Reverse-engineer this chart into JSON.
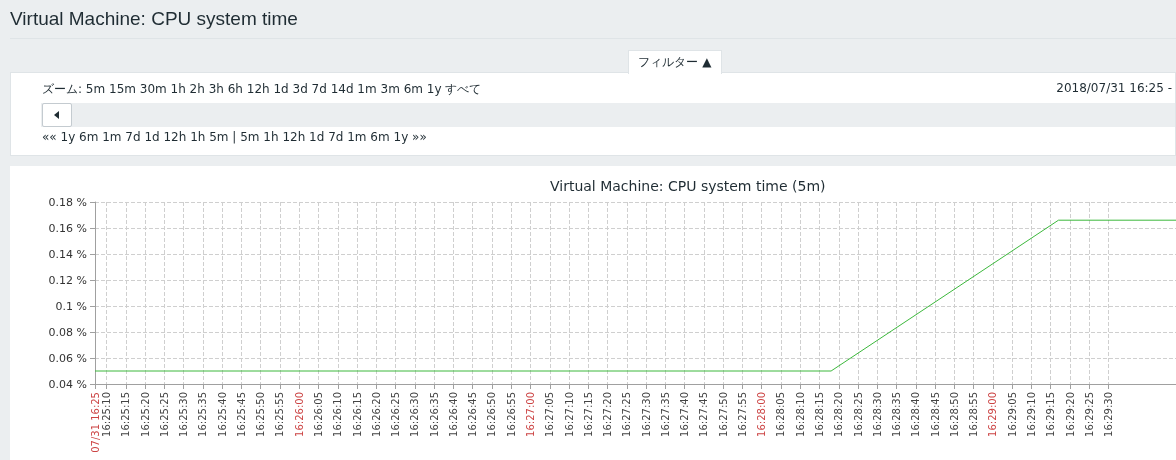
{
  "chart_data": {
    "type": "line",
    "title": "Virtual Machine: CPU system time",
    "subtitle": "Virtual Machine: CPU system time (5m)",
    "annotations": [
      "フィルター ▲",
      "ズーム: 5m 15m 30m 1h 2h 3h 6h 12h 1d 3d 7d 14d 1m 3m 6m 1y すべて",
      "2018/07/31 16:25 -",
      "«« 1y 6m 1m 7d 1d 12h 1h 5m | 5m 1h 12h 1d 7d 1m 6m 1y »»"
    ],
    "series": [
      {
        "color": "#3cb83c",
        "x": [
          16.418611,
          16.471667,
          16.488056,
          16.496528
        ],
        "values": [
          0.05,
          0.05,
          0.166,
          0.166
        ]
      }
    ],
    "xlim": [
      16.418611,
      16.496528
    ],
    "xticks": [
      {
        "value": 16.418611,
        "label": "07/31 16:25"
      },
      {
        "value": 16.419444,
        "label": "16:25:10"
      },
      {
        "value": 16.420833,
        "label": "16:25:15"
      },
      {
        "value": 16.422222,
        "label": "16:25:20"
      },
      {
        "value": 16.423611,
        "label": "16:25:25"
      },
      {
        "value": 16.425,
        "label": "16:25:30"
      },
      {
        "value": 16.426389,
        "label": "16:25:35"
      },
      {
        "value": 16.427778,
        "label": "16:25:40"
      },
      {
        "value": 16.429167,
        "label": "16:25:45"
      },
      {
        "value": 16.430556,
        "label": "16:25:50"
      },
      {
        "value": 16.431944,
        "label": "16:25:55"
      },
      {
        "value": 16.433333,
        "label": "16:26:00"
      },
      {
        "value": 16.434722,
        "label": "16:26:05"
      },
      {
        "value": 16.436111,
        "label": "16:26:10"
      },
      {
        "value": 16.4375,
        "label": "16:26:15"
      },
      {
        "value": 16.438889,
        "label": "16:26:20"
      },
      {
        "value": 16.440278,
        "label": "16:26:25"
      },
      {
        "value": 16.441667,
        "label": "16:26:30"
      },
      {
        "value": 16.443056,
        "label": "16:26:35"
      },
      {
        "value": 16.444444,
        "label": "16:26:40"
      },
      {
        "value": 16.445833,
        "label": "16:26:45"
      },
      {
        "value": 16.447222,
        "label": "16:26:50"
      },
      {
        "value": 16.448611,
        "label": "16:26:55"
      },
      {
        "value": 16.45,
        "label": "16:27:00"
      },
      {
        "value": 16.451389,
        "label": "16:27:05"
      },
      {
        "value": 16.452778,
        "label": "16:27:10"
      },
      {
        "value": 16.454167,
        "label": "16:27:15"
      },
      {
        "value": 16.455556,
        "label": "16:27:20"
      },
      {
        "value": 16.456944,
        "label": "16:27:25"
      },
      {
        "value": 16.458333,
        "label": "16:27:30"
      },
      {
        "value": 16.459722,
        "label": "16:27:35"
      },
      {
        "value": 16.461111,
        "label": "16:27:40"
      },
      {
        "value": 16.4625,
        "label": "16:27:45"
      },
      {
        "value": 16.463889,
        "label": "16:27:50"
      },
      {
        "value": 16.465278,
        "label": "16:27:55"
      },
      {
        "value": 16.466667,
        "label": "16:28:00"
      },
      {
        "value": 16.468056,
        "label": "16:28:05"
      },
      {
        "value": 16.469444,
        "label": "16:28:10"
      },
      {
        "value": 16.470833,
        "label": "16:28:15"
      },
      {
        "value": 16.472222,
        "label": "16:28:20"
      },
      {
        "value": 16.473611,
        "label": "16:28:25"
      },
      {
        "value": 16.475,
        "label": "16:28:30"
      },
      {
        "value": 16.476389,
        "label": "16:28:35"
      },
      {
        "value": 16.477778,
        "label": "16:28:40"
      },
      {
        "value": 16.479167,
        "label": "16:28:45"
      },
      {
        "value": 16.480556,
        "label": "16:28:50"
      },
      {
        "value": 16.481944,
        "label": "16:28:55"
      },
      {
        "value": 16.483333,
        "label": "16:29:00"
      },
      {
        "value": 16.484722,
        "label": "16:29:05"
      },
      {
        "value": 16.486111,
        "label": "16:29:10"
      },
      {
        "value": 16.4875,
        "label": "16:29:15"
      },
      {
        "value": 16.488889,
        "label": "16:29:20"
      },
      {
        "value": 16.490278,
        "label": "16:29:25"
      },
      {
        "value": 16.491667,
        "label": "16:29:30"
      }
    ],
    "ylim": [
      0.04,
      0.18
    ],
    "yticks": [
      {
        "value": 0.04,
        "label": "0.04 %"
      },
      {
        "value": 0.06,
        "label": "0.06 %"
      },
      {
        "value": 0.08,
        "label": "0.08 %"
      },
      {
        "value": 0.1,
        "label": "0.1 %"
      },
      {
        "value": 0.12,
        "label": "0.12 %"
      },
      {
        "value": 0.14,
        "label": "0.14 %"
      },
      {
        "value": 0.16,
        "label": "0.16 %"
      },
      {
        "value": 0.18,
        "label": "0.18 %"
      }
    ],
    "grid": true,
    "marker": "none",
    "line_style": "solid"
  }
}
